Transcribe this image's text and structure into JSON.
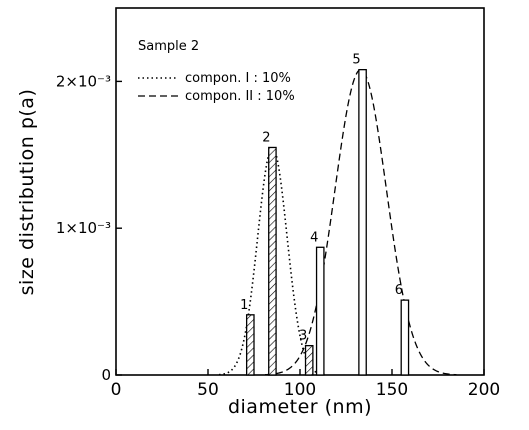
{
  "chart_data": {
    "type": "bar",
    "sample_label": "Sample 2",
    "xlabel": "diameter  (nm)",
    "ylabel": "size distribution  p(a)",
    "xlim": [
      0,
      200
    ],
    "ylim": [
      0,
      0.0025
    ],
    "x_ticks": [
      0,
      50,
      100,
      150,
      200
    ],
    "x_tick_labels": [
      "0",
      "50",
      "100",
      "150",
      "200"
    ],
    "y_ticks": [
      0,
      0.001,
      0.002
    ],
    "y_tick_labels": [
      "0",
      "1×10⁻³",
      "2×10⁻³"
    ],
    "bars": [
      {
        "label": "1",
        "x": 73,
        "value": 0.00041,
        "hatched": true
      },
      {
        "label": "2",
        "x": 85,
        "value": 0.00155,
        "hatched": true
      },
      {
        "label": "3",
        "x": 105,
        "value": 0.0002,
        "hatched": true
      },
      {
        "label": "4",
        "x": 111,
        "value": 0.00087,
        "hatched": false
      },
      {
        "label": "5",
        "x": 134,
        "value": 0.00208,
        "hatched": false
      },
      {
        "label": "6",
        "x": 157,
        "value": 0.00051,
        "hatched": false
      }
    ],
    "bar_width": 4,
    "series": [
      {
        "name": "compon. I :  10%",
        "style": "dotted",
        "mean": 85,
        "sigma": 8,
        "peak": 0.00155
      },
      {
        "name": "compon. II :  10%",
        "style": "dashed",
        "mean": 133,
        "sigma": 14,
        "peak": 0.00208
      }
    ],
    "legend_position": "top-left",
    "grid": false
  }
}
